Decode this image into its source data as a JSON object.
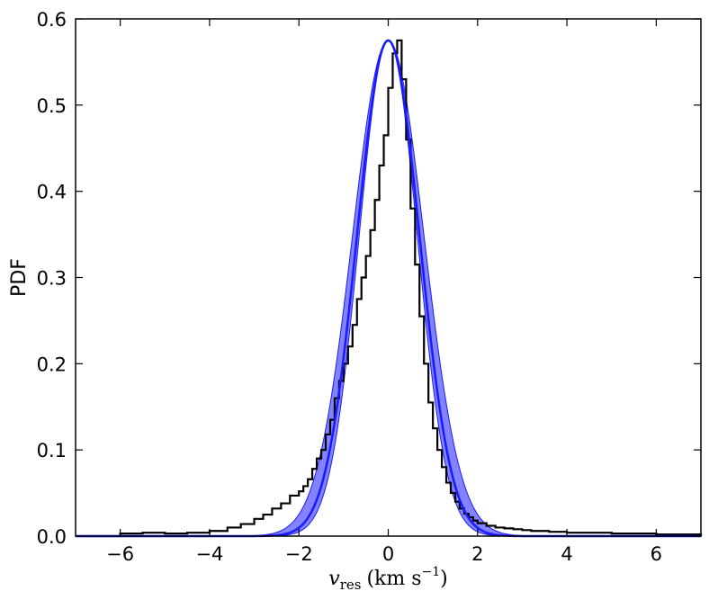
{
  "chart_data": {
    "type": "line",
    "title": "",
    "ylabel": "PDF",
    "xlabel": {
      "var": "v",
      "sub": "res",
      "units_open": "(km s",
      "units_exp": "−1",
      "units_close": ")"
    },
    "xlim": [
      -7,
      7
    ],
    "ylim": [
      0,
      0.6
    ],
    "xticks": [
      -6,
      -4,
      -2,
      0,
      2,
      4,
      6
    ],
    "xtick_labels": [
      "−6",
      "−4",
      "−2",
      "0",
      "2",
      "4",
      "6"
    ],
    "yticks": [
      0,
      0.1,
      0.2,
      0.3,
      0.4,
      0.5,
      0.6
    ],
    "ytick_labels": [
      "0.0",
      "0.1",
      "0.2",
      "0.3",
      "0.4",
      "0.5",
      "0.6"
    ],
    "grid": false,
    "colors": {
      "histogram": "#000000",
      "model": "#1a1aff",
      "band": "#5a5aff"
    },
    "series": [
      {
        "kind": "step-histogram",
        "x": [
          -7,
          -6.0,
          -5.5,
          -5.0,
          -4.5,
          -4.0,
          -3.6,
          -3.3,
          -3.0,
          -2.8,
          -2.6,
          -2.4,
          -2.2,
          -2.0,
          -1.9,
          -1.8,
          -1.7,
          -1.6,
          -1.5,
          -1.4,
          -1.3,
          -1.2,
          -1.1,
          -1.0,
          -0.9,
          -0.8,
          -0.7,
          -0.6,
          -0.5,
          -0.4,
          -0.3,
          -0.2,
          -0.1,
          0.0,
          0.1,
          0.2,
          0.3,
          0.4,
          0.5,
          0.6,
          0.7,
          0.8,
          0.9,
          1.0,
          1.1,
          1.2,
          1.3,
          1.4,
          1.5,
          1.6,
          1.7,
          1.8,
          1.9,
          2.0,
          2.2,
          2.4,
          2.6,
          2.8,
          3.0,
          3.2,
          3.6,
          4.0,
          5.0,
          6.0,
          7.0
        ],
        "y": [
          0.0,
          0.003,
          0.004,
          0.003,
          0.004,
          0.006,
          0.01,
          0.014,
          0.02,
          0.025,
          0.032,
          0.038,
          0.047,
          0.052,
          0.058,
          0.066,
          0.078,
          0.09,
          0.1,
          0.118,
          0.135,
          0.16,
          0.18,
          0.2,
          0.22,
          0.245,
          0.275,
          0.3,
          0.325,
          0.355,
          0.39,
          0.43,
          0.465,
          0.52,
          0.56,
          0.575,
          0.53,
          0.46,
          0.38,
          0.315,
          0.255,
          0.2,
          0.155,
          0.125,
          0.1,
          0.08,
          0.062,
          0.05,
          0.04,
          0.032,
          0.026,
          0.022,
          0.018,
          0.015,
          0.012,
          0.01,
          0.009,
          0.008,
          0.007,
          0.006,
          0.005,
          0.004,
          0.003,
          0.002,
          0.0
        ]
      },
      {
        "kind": "gaussian-model",
        "mean": 0.0,
        "peak": 0.575,
        "sigma": 0.7,
        "sigma_band": [
          0.65,
          0.8
        ]
      }
    ]
  }
}
